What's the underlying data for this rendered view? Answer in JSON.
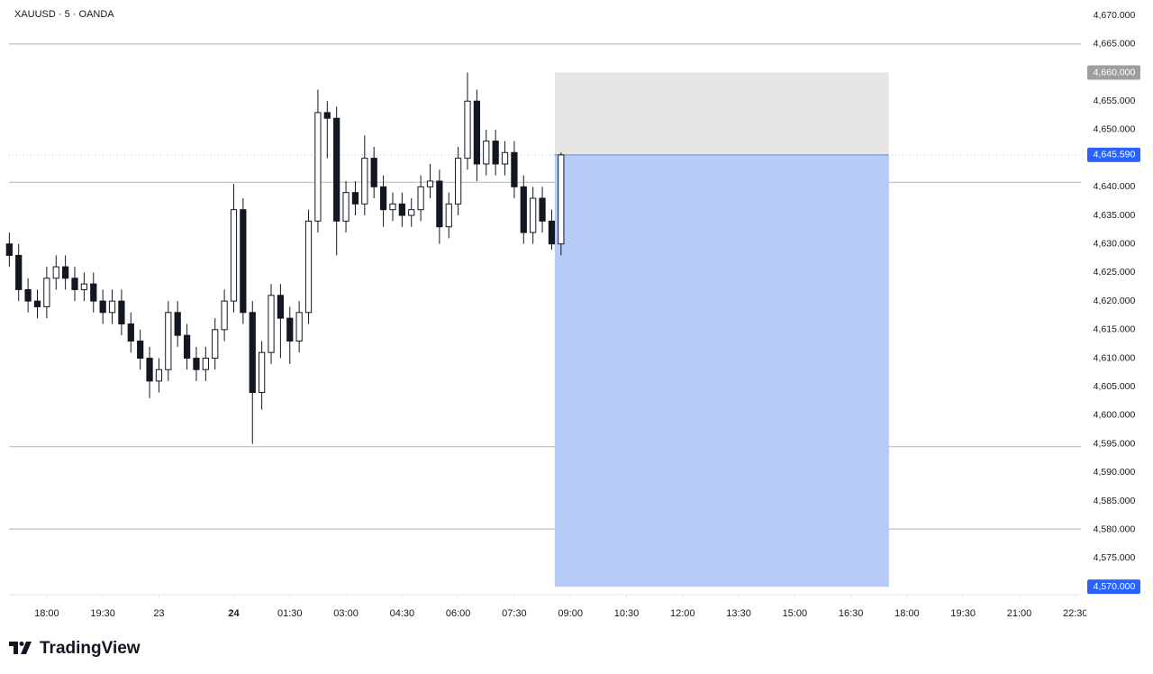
{
  "chart_data": {
    "type": "candlestick",
    "title": "XAUUSD · 5 · OANDA",
    "x": [
      -12,
      -9,
      -6,
      -3,
      0,
      3,
      6,
      9,
      12,
      15,
      18,
      21,
      24,
      27,
      30,
      33,
      36,
      39,
      42,
      45,
      48,
      51,
      54,
      57,
      60,
      63,
      66,
      69,
      72,
      75,
      78,
      81,
      84,
      87,
      90,
      93,
      96,
      99,
      102,
      105,
      108,
      111,
      114,
      117,
      120,
      123,
      126,
      129,
      132,
      135,
      138,
      141,
      144,
      147,
      150,
      153,
      156,
      159,
      162,
      165
    ],
    "open": [
      4630,
      4628,
      4622,
      4620,
      4619,
      4624,
      4626,
      4624,
      4622,
      4623,
      4620,
      4618,
      4620,
      4616,
      4613,
      4610,
      4606,
      4608,
      4618,
      4614,
      4610,
      4608,
      4610,
      4615,
      4620,
      4636,
      4618,
      4604,
      4611,
      4621,
      4617,
      4613,
      4618,
      4634,
      4653,
      4652,
      4634,
      4639,
      4637,
      4645,
      4640,
      4636,
      4637,
      4635,
      4636,
      4640,
      4641,
      4633,
      4637,
      4645,
      4655,
      4644,
      4648,
      4644,
      4646,
      4640,
      4632,
      4638,
      4634,
      4630
    ],
    "high": [
      4632,
      4630,
      4624,
      4622,
      4626,
      4628,
      4628,
      4626,
      4625,
      4625,
      4622,
      4622,
      4622,
      4618,
      4615,
      4612,
      4610,
      4620,
      4620,
      4616,
      4612,
      4612,
      4617,
      4622,
      4640.5,
      4638,
      4620,
      4613,
      4623,
      4623,
      4619,
      4620,
      4636,
      4657,
      4655,
      4654,
      4641,
      4641,
      4649,
      4647,
      4642,
      4639,
      4639,
      4638,
      4642,
      4644,
      4643,
      4639,
      4647,
      4660,
      4657,
      4650,
      4650,
      4648,
      4648,
      4642,
      4640,
      4640,
      4636,
      4646
    ],
    "low": [
      4626,
      4620,
      4618,
      4617,
      4617,
      4622,
      4622,
      4620,
      4620,
      4618,
      4616,
      4616,
      4614,
      4611,
      4608,
      4603,
      4604,
      4606,
      4612,
      4608,
      4606,
      4606,
      4608,
      4613,
      4618,
      4616,
      4595,
      4601,
      4609,
      4610,
      4609,
      4611,
      4616,
      4632,
      4645,
      4628,
      4632,
      4635,
      4635,
      4638,
      4633,
      4634,
      4633,
      4633,
      4634,
      4638,
      4630,
      4631,
      4635,
      4643,
      4641,
      4642,
      4642,
      4642,
      4638,
      4630,
      4630,
      4632,
      4629,
      4628
    ],
    "close": [
      4628,
      4622,
      4620,
      4619,
      4624,
      4626,
      4624,
      4622,
      4623,
      4620,
      4618,
      4620,
      4616,
      4613,
      4610,
      4606,
      4608,
      4618,
      4614,
      4610,
      4608,
      4610,
      4615,
      4620,
      4636,
      4618,
      4604,
      4611,
      4621,
      4617,
      4613,
      4618,
      4634,
      4653,
      4652,
      4634,
      4639,
      4637,
      4645,
      4640,
      4636,
      4637,
      4635,
      4636,
      4640,
      4641,
      4633,
      4637,
      4645,
      4655,
      4644,
      4648,
      4644,
      4646,
      4640,
      4632,
      4638,
      4634,
      4630,
      4645.59
    ],
    "up_color": "#ffffff",
    "down_color": "#131722",
    "wick_color": "#131722",
    "xlim": [
      -12.1,
      331.8
    ],
    "ylim": [
      4568.6,
      4672.7
    ],
    "xticks": [
      {
        "value": 0,
        "label": "18:00"
      },
      {
        "value": 18,
        "label": "19:30"
      },
      {
        "value": 36,
        "label": "23"
      },
      {
        "value": 60,
        "label": "24"
      },
      {
        "value": 78,
        "label": "01:30"
      },
      {
        "value": 96,
        "label": "03:00"
      },
      {
        "value": 114,
        "label": "04:30"
      },
      {
        "value": 132,
        "label": "06:00"
      },
      {
        "value": 150,
        "label": "07:30"
      },
      {
        "value": 168,
        "label": "09:00"
      },
      {
        "value": 186,
        "label": "10:30"
      },
      {
        "value": 204,
        "label": "12:00"
      },
      {
        "value": 222,
        "label": "13:30"
      },
      {
        "value": 240,
        "label": "15:00"
      },
      {
        "value": 258,
        "label": "16:30"
      },
      {
        "value": 276,
        "label": "18:00"
      },
      {
        "value": 294,
        "label": "19:30"
      },
      {
        "value": 312,
        "label": "21:00"
      },
      {
        "value": 330,
        "label": "22:30"
      }
    ],
    "yticks": [
      {
        "value": 4670,
        "label": "4,670.000"
      },
      {
        "value": 4665,
        "label": "4,665.000"
      },
      {
        "value": 4655,
        "label": "4,655.000"
      },
      {
        "value": 4650,
        "label": "4,650.000"
      },
      {
        "value": 4640,
        "label": "4,640.000"
      },
      {
        "value": 4635,
        "label": "4,635.000"
      },
      {
        "value": 4630,
        "label": "4,630.000"
      },
      {
        "value": 4625,
        "label": "4,625.000"
      },
      {
        "value": 4620,
        "label": "4,620.000"
      },
      {
        "value": 4615,
        "label": "4,615.000"
      },
      {
        "value": 4610,
        "label": "4,610.000"
      },
      {
        "value": 4605,
        "label": "4,605.000"
      },
      {
        "value": 4600,
        "label": "4,600.000"
      },
      {
        "value": 4595,
        "label": "4,595.000"
      },
      {
        "value": 4590,
        "label": "4,590.000"
      },
      {
        "value": 4585,
        "label": "4,585.000"
      },
      {
        "value": 4580,
        "label": "4,580.000"
      },
      {
        "value": 4575,
        "label": "4,575.000"
      }
    ],
    "hlines": [
      4665,
      4640.8,
      4594.5,
      4580.1
    ],
    "position": {
      "x": [
        163,
        270.2
      ],
      "stop": {
        "value": 4660,
        "label": "4,660.000",
        "color": "#9e9e9e"
      },
      "entry": {
        "value": 4645.59,
        "label": "4,645.590",
        "color": "#2962ff"
      },
      "target": {
        "value": 4570,
        "label": "4,570.000",
        "color": "#2962ff"
      }
    }
  },
  "footer": {
    "brand": "TradingView"
  }
}
